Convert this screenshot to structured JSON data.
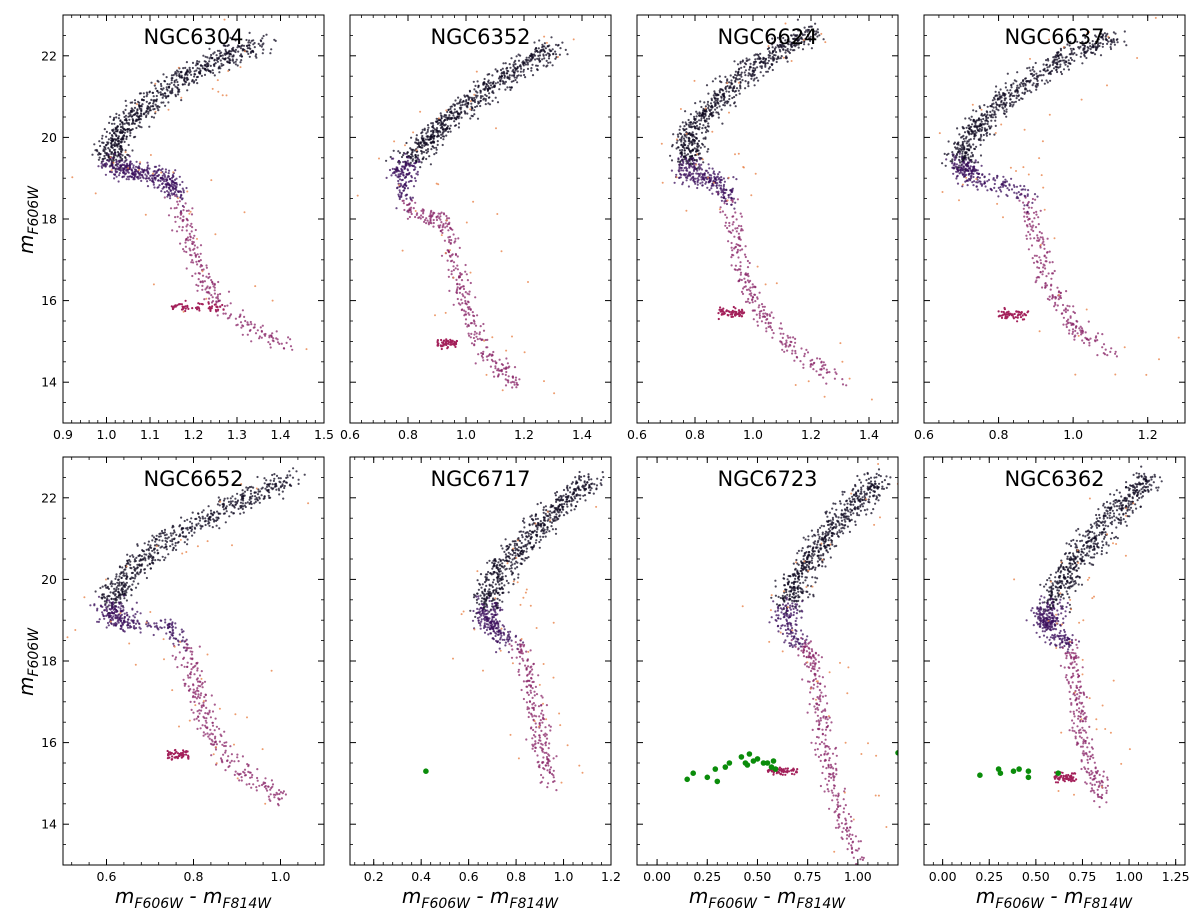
{
  "figure": {
    "ylabel": {
      "main": "m",
      "sub": "F606W"
    },
    "xlabel": {
      "m1": "m",
      "sub1": "F606W",
      "sep": " - ",
      "m2": "m",
      "sub2": "F814W"
    }
  },
  "colors": {
    "ridge": "#0f0920",
    "subgiant": "#3b0f5c",
    "rgb": "#8a2568",
    "hb_red": "#a3205a",
    "outlier": "#e8834a",
    "marked": "#0a8c0a",
    "frame": "#000000"
  },
  "chart_data": [
    {
      "type": "scatter",
      "title": "NGC6304",
      "xlim": [
        0.9,
        1.5
      ],
      "ylim": [
        23,
        13
      ],
      "xticks": [
        "0.9",
        "1.0",
        "1.1",
        "1.2",
        "1.3",
        "1.4",
        "1.5"
      ],
      "yticks": [
        "14",
        "16",
        "18",
        "20",
        "22"
      ],
      "ridge": [
        [
          1.35,
          22.3
        ],
        [
          1.28,
          22.0
        ],
        [
          1.2,
          21.6
        ],
        [
          1.13,
          21.1
        ],
        [
          1.07,
          20.6
        ],
        [
          1.03,
          20.1
        ],
        [
          1.01,
          19.7
        ],
        [
          1.02,
          19.3
        ],
        [
          1.06,
          19.15
        ],
        [
          1.13,
          19.05
        ],
        [
          1.16,
          18.6
        ],
        [
          1.18,
          17.9
        ],
        [
          1.2,
          17.2
        ],
        [
          1.23,
          16.5
        ],
        [
          1.26,
          15.9
        ],
        [
          1.33,
          15.3
        ],
        [
          1.42,
          14.9
        ]
      ],
      "hb": {
        "x": [
          1.15,
          1.27
        ],
        "y": 15.85
      },
      "marked": []
    },
    {
      "type": "scatter",
      "title": "NGC6352",
      "xlim": [
        0.6,
        1.5
      ],
      "ylim": [
        23,
        13
      ],
      "xticks": [
        "0.6",
        "0.8",
        "1.0",
        "1.2",
        "1.4"
      ],
      "yticks": [],
      "ridge": [
        [
          1.3,
          22.2
        ],
        [
          1.2,
          21.8
        ],
        [
          1.1,
          21.3
        ],
        [
          1.0,
          20.8
        ],
        [
          0.92,
          20.3
        ],
        [
          0.86,
          19.9
        ],
        [
          0.8,
          19.4
        ],
        [
          0.78,
          18.9
        ],
        [
          0.8,
          18.3
        ],
        [
          0.88,
          18.1
        ],
        [
          0.93,
          17.9
        ],
        [
          0.96,
          17.0
        ],
        [
          0.98,
          16.3
        ],
        [
          1.01,
          15.7
        ],
        [
          1.05,
          14.9
        ],
        [
          1.12,
          14.3
        ],
        [
          1.18,
          13.9
        ]
      ],
      "hb": {
        "x": [
          0.9,
          0.97
        ],
        "y": 14.95
      },
      "marked": []
    },
    {
      "type": "scatter",
      "title": "NGC6624",
      "xlim": [
        0.6,
        1.5
      ],
      "ylim": [
        23,
        13
      ],
      "xticks": [
        "0.6",
        "0.8",
        "1.0",
        "1.2",
        "1.4"
      ],
      "yticks": [],
      "ridge": [
        [
          1.2,
          22.6
        ],
        [
          1.1,
          22.2
        ],
        [
          1.0,
          21.7
        ],
        [
          0.9,
          21.1
        ],
        [
          0.83,
          20.5
        ],
        [
          0.78,
          20.0
        ],
        [
          0.77,
          19.5
        ],
        [
          0.79,
          19.1
        ],
        [
          0.88,
          18.9
        ],
        [
          0.91,
          18.7
        ],
        [
          0.93,
          18.0
        ],
        [
          0.95,
          17.2
        ],
        [
          0.98,
          16.4
        ],
        [
          1.02,
          15.8
        ],
        [
          1.08,
          15.2
        ],
        [
          1.18,
          14.6
        ],
        [
          1.3,
          14.0
        ]
      ],
      "hb": {
        "x": [
          0.88,
          0.97
        ],
        "y": 15.7
      },
      "marked": []
    },
    {
      "type": "scatter",
      "title": "NGC6637",
      "xlim": [
        0.6,
        1.3
      ],
      "ylim": [
        23,
        13
      ],
      "xticks": [
        "0.6",
        "0.8",
        "1.0",
        "1.2"
      ],
      "yticks": [],
      "ridge": [
        [
          1.12,
          22.5
        ],
        [
          1.0,
          22.1
        ],
        [
          0.9,
          21.5
        ],
        [
          0.81,
          20.9
        ],
        [
          0.75,
          20.3
        ],
        [
          0.71,
          19.8
        ],
        [
          0.7,
          19.3
        ],
        [
          0.73,
          19.0
        ],
        [
          0.8,
          18.85
        ],
        [
          0.87,
          18.7
        ],
        [
          0.89,
          18.0
        ],
        [
          0.91,
          17.2
        ],
        [
          0.93,
          16.5
        ],
        [
          0.97,
          15.8
        ],
        [
          1.02,
          15.2
        ],
        [
          1.1,
          14.7
        ]
      ],
      "hb": {
        "x": [
          0.8,
          0.88
        ],
        "y": 15.65
      },
      "marked": []
    },
    {
      "type": "scatter",
      "title": "NGC6652",
      "xlim": [
        0.5,
        1.1
      ],
      "ylim": [
        23,
        13
      ],
      "xticks": [
        "0.6",
        "0.8",
        "1.0"
      ],
      "yticks": [
        "14",
        "16",
        "18",
        "20",
        "22"
      ],
      "ridge": [
        [
          1.02,
          22.5
        ],
        [
          0.93,
          22.0
        ],
        [
          0.83,
          21.5
        ],
        [
          0.73,
          20.9
        ],
        [
          0.66,
          20.3
        ],
        [
          0.62,
          19.7
        ],
        [
          0.61,
          19.2
        ],
        [
          0.64,
          18.95
        ],
        [
          0.72,
          18.85
        ],
        [
          0.77,
          18.7
        ],
        [
          0.79,
          18.0
        ],
        [
          0.8,
          17.4
        ],
        [
          0.82,
          16.8
        ],
        [
          0.84,
          16.2
        ],
        [
          0.88,
          15.6
        ],
        [
          0.95,
          15.0
        ],
        [
          1.0,
          14.6
        ]
      ],
      "hb": {
        "x": [
          0.74,
          0.79
        ],
        "y": 15.7
      },
      "marked": []
    },
    {
      "type": "scatter",
      "title": "NGC6717",
      "xlim": [
        0.1,
        1.2
      ],
      "ylim": [
        23,
        13
      ],
      "xticks": [
        "0.2",
        "0.4",
        "0.6",
        "0.8",
        "1.0",
        "1.2"
      ],
      "yticks": [],
      "ridge": [
        [
          1.12,
          22.5
        ],
        [
          1.02,
          22.0
        ],
        [
          0.92,
          21.4
        ],
        [
          0.82,
          20.8
        ],
        [
          0.74,
          20.3
        ],
        [
          0.69,
          19.7
        ],
        [
          0.68,
          19.2
        ],
        [
          0.7,
          18.8
        ],
        [
          0.75,
          18.5
        ],
        [
          0.83,
          18.3
        ],
        [
          0.86,
          17.5
        ],
        [
          0.88,
          16.8
        ],
        [
          0.9,
          16.2
        ],
        [
          0.92,
          15.6
        ],
        [
          0.95,
          15.0
        ]
      ],
      "hb": null,
      "marked": [
        [
          0.42,
          15.3
        ]
      ]
    },
    {
      "type": "scatter",
      "title": "NGC6723",
      "xlim": [
        -0.1,
        1.2
      ],
      "ylim": [
        23,
        13
      ],
      "xticks": [
        "0.00",
        "0.25",
        "0.50",
        "0.75",
        "1.00"
      ],
      "yticks": [],
      "ridge": [
        [
          1.1,
          22.5
        ],
        [
          1.0,
          22.0
        ],
        [
          0.9,
          21.4
        ],
        [
          0.8,
          20.8
        ],
        [
          0.72,
          20.2
        ],
        [
          0.67,
          19.6
        ],
        [
          0.65,
          19.0
        ],
        [
          0.68,
          18.5
        ],
        [
          0.74,
          18.3
        ],
        [
          0.78,
          18.0
        ],
        [
          0.8,
          17.2
        ],
        [
          0.82,
          16.4
        ],
        [
          0.84,
          15.6
        ],
        [
          0.88,
          14.8
        ],
        [
          0.93,
          14.0
        ],
        [
          1.0,
          13.2
        ]
      ],
      "hb": {
        "x": [
          0.55,
          0.7
        ],
        "y": 15.3
      },
      "marked": [
        [
          0.15,
          15.1
        ],
        [
          0.18,
          15.25
        ],
        [
          0.25,
          15.15
        ],
        [
          0.3,
          15.05
        ],
        [
          0.29,
          15.35
        ],
        [
          0.34,
          15.4
        ],
        [
          0.36,
          15.5
        ],
        [
          0.42,
          15.65
        ],
        [
          0.44,
          15.5
        ],
        [
          0.45,
          15.45
        ],
        [
          0.46,
          15.72
        ],
        [
          0.48,
          15.55
        ],
        [
          0.5,
          15.6
        ],
        [
          0.53,
          15.5
        ],
        [
          0.55,
          15.5
        ],
        [
          0.57,
          15.4
        ],
        [
          0.59,
          15.35
        ],
        [
          0.58,
          15.55
        ],
        [
          1.2,
          15.75
        ]
      ]
    },
    {
      "type": "scatter",
      "title": "NGC6362",
      "xlim": [
        -0.1,
        1.3
      ],
      "ylim": [
        23,
        13
      ],
      "xticks": [
        "0.00",
        "0.25",
        "0.50",
        "0.75",
        "1.00",
        "1.25"
      ],
      "yticks": [],
      "ridge": [
        [
          1.12,
          22.5
        ],
        [
          1.0,
          22.0
        ],
        [
          0.88,
          21.4
        ],
        [
          0.77,
          20.8
        ],
        [
          0.67,
          20.2
        ],
        [
          0.6,
          19.6
        ],
        [
          0.56,
          19.1
        ],
        [
          0.57,
          18.8
        ],
        [
          0.63,
          18.55
        ],
        [
          0.68,
          18.4
        ],
        [
          0.7,
          17.8
        ],
        [
          0.72,
          17.1
        ],
        [
          0.74,
          16.4
        ],
        [
          0.77,
          15.8
        ],
        [
          0.82,
          15.1
        ],
        [
          0.86,
          14.6
        ]
      ],
      "hb": {
        "x": [
          0.6,
          0.72
        ],
        "y": 15.15
      },
      "marked": [
        [
          0.2,
          15.2
        ],
        [
          0.3,
          15.35
        ],
        [
          0.31,
          15.25
        ],
        [
          0.38,
          15.3
        ],
        [
          0.41,
          15.35
        ],
        [
          0.46,
          15.15
        ],
        [
          0.46,
          15.3
        ],
        [
          0.62,
          15.25
        ]
      ]
    }
  ]
}
